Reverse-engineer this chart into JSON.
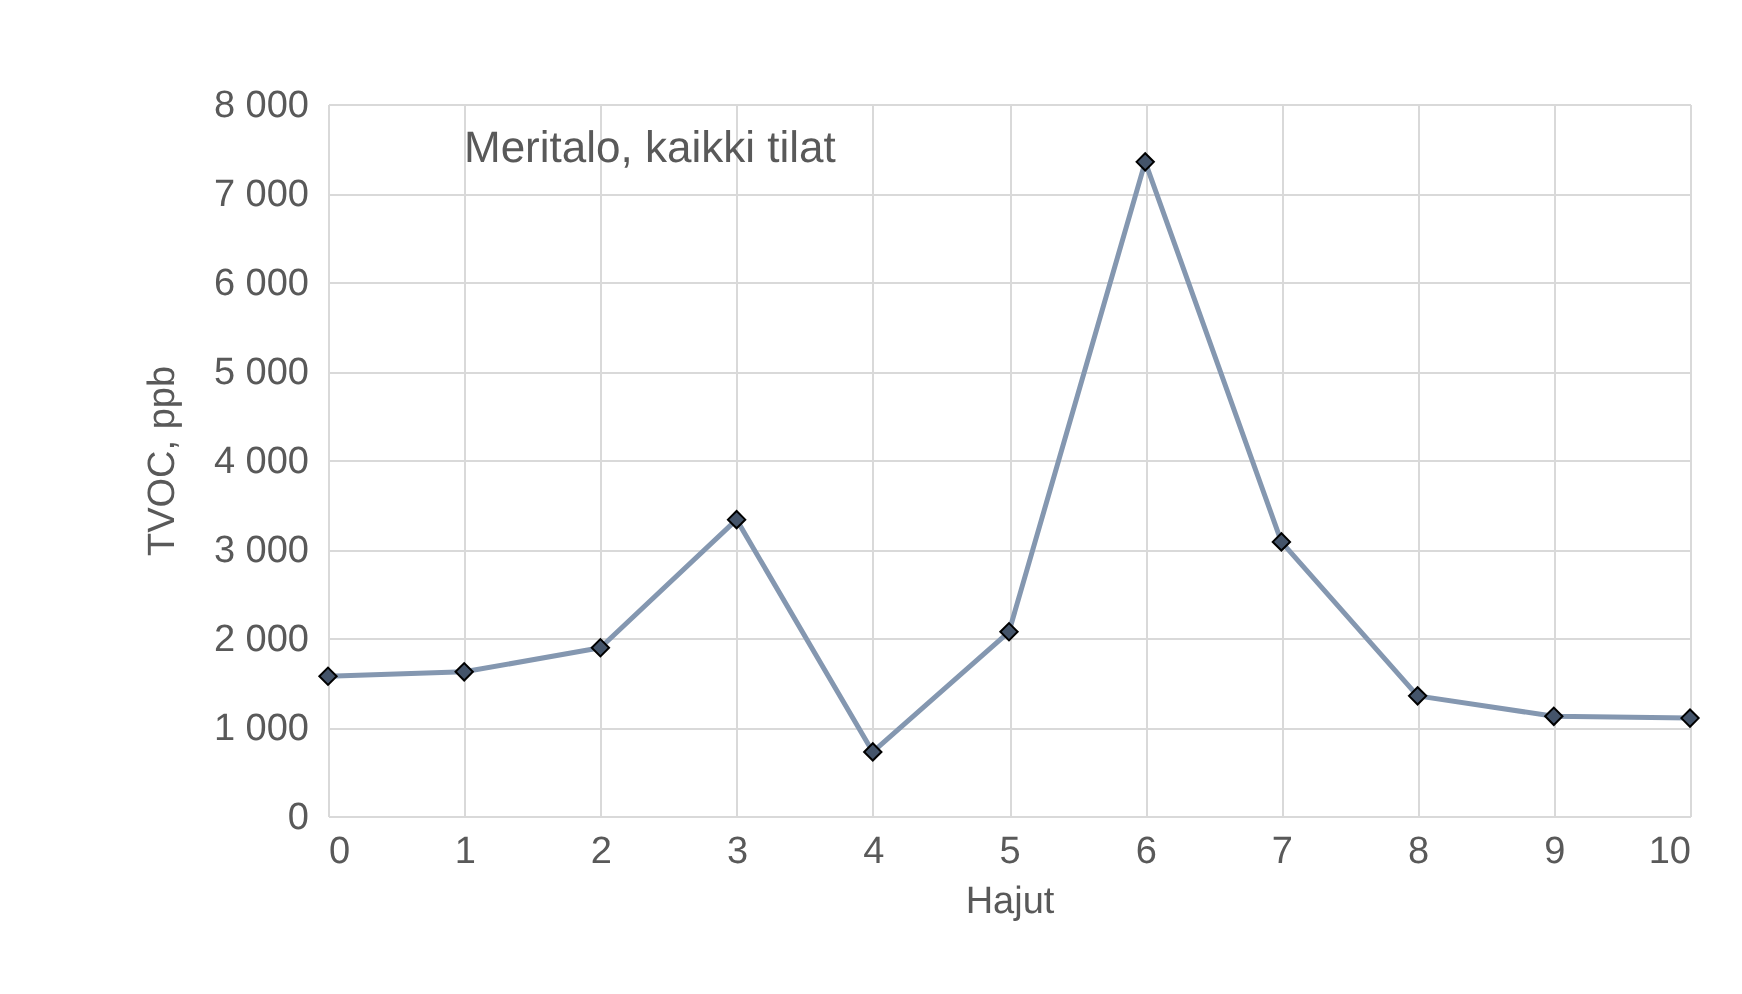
{
  "chart_data": {
    "type": "line",
    "xlabel": "Hajut",
    "ylabel": "TVOC, ppb",
    "annotations": [
      "Meritalo, kaikki tilat"
    ],
    "x": [
      0,
      1,
      2,
      3,
      4,
      5,
      6,
      7,
      8,
      9,
      10
    ],
    "series": [
      {
        "color": "#8497b0",
        "values": [
          1570,
          1620,
          1890,
          3330,
          720,
          2070,
          7350,
          3080,
          1350,
          1120,
          1100
        ]
      }
    ],
    "xlim": [
      0,
      10
    ],
    "xticks": [
      0,
      1,
      2,
      3,
      4,
      5,
      6,
      7,
      8,
      9,
      10
    ],
    "ylim": [
      0,
      8000
    ],
    "yticks": [
      0,
      {
        "value": 1000,
        "label": "1 000"
      },
      {
        "value": 2000,
        "label": "2 000"
      },
      {
        "value": 3000,
        "label": "3 000"
      },
      {
        "value": 4000,
        "label": "4 000"
      },
      {
        "value": 5000,
        "label": "5 000"
      },
      {
        "value": 6000,
        "label": "6 000"
      },
      {
        "value": 7000,
        "label": "7 000"
      },
      {
        "value": 8000,
        "label": "8 000"
      }
    ],
    "grid": true,
    "marker": "diamond",
    "line_style": "solid"
  }
}
